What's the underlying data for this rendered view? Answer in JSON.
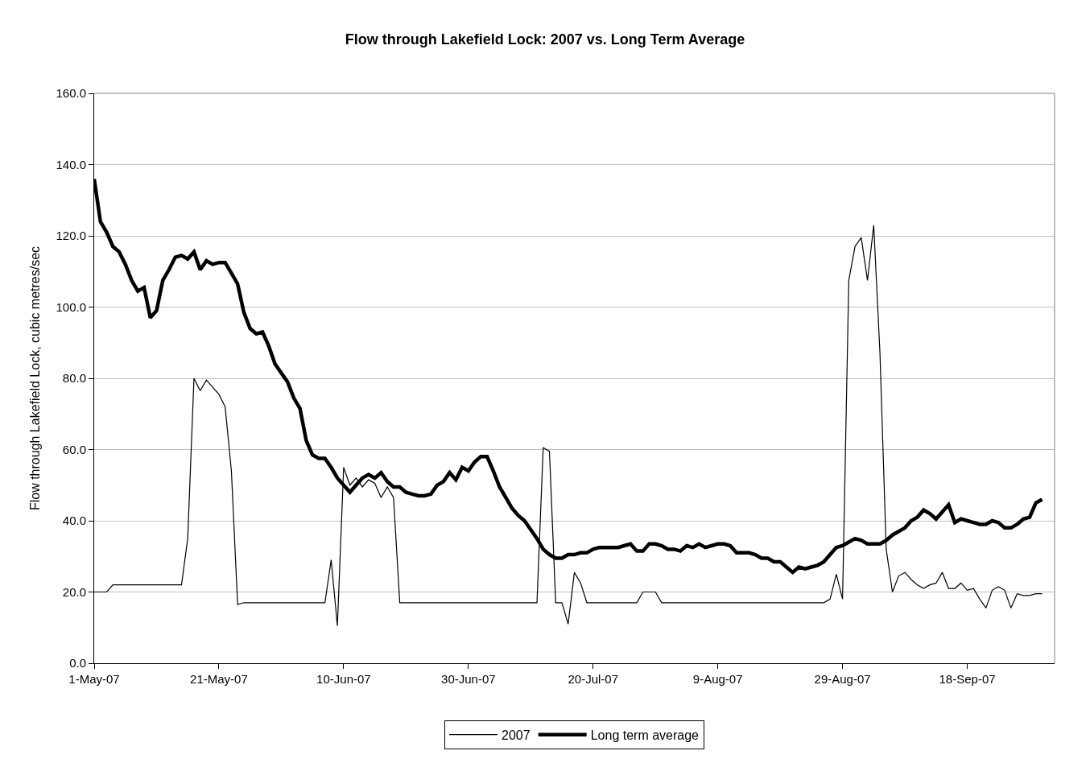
{
  "chart_data": {
    "type": "line",
    "title": "Flow through Lakefield Lock: 2007 vs. Long Term Average",
    "ylabel": "Flow through Lakefield Lock, cubic metres/sec",
    "x": [
      "2007-05-01",
      "2007-05-02",
      "2007-05-03",
      "2007-05-04",
      "2007-05-05",
      "2007-05-06",
      "2007-05-07",
      "2007-05-08",
      "2007-05-09",
      "2007-05-10",
      "2007-05-11",
      "2007-05-12",
      "2007-05-13",
      "2007-05-14",
      "2007-05-15",
      "2007-05-16",
      "2007-05-17",
      "2007-05-18",
      "2007-05-19",
      "2007-05-20",
      "2007-05-21",
      "2007-05-22",
      "2007-05-23",
      "2007-05-24",
      "2007-05-25",
      "2007-05-26",
      "2007-05-27",
      "2007-05-28",
      "2007-05-29",
      "2007-05-30",
      "2007-05-31",
      "2007-06-01",
      "2007-06-02",
      "2007-06-03",
      "2007-06-04",
      "2007-06-05",
      "2007-06-06",
      "2007-06-07",
      "2007-06-08",
      "2007-06-09",
      "2007-06-10",
      "2007-06-11",
      "2007-06-12",
      "2007-06-13",
      "2007-06-14",
      "2007-06-15",
      "2007-06-16",
      "2007-06-17",
      "2007-06-18",
      "2007-06-19",
      "2007-06-20",
      "2007-06-21",
      "2007-06-22",
      "2007-06-23",
      "2007-06-24",
      "2007-06-25",
      "2007-06-26",
      "2007-06-27",
      "2007-06-28",
      "2007-06-29",
      "2007-06-30",
      "2007-07-01",
      "2007-07-02",
      "2007-07-03",
      "2007-07-04",
      "2007-07-05",
      "2007-07-06",
      "2007-07-07",
      "2007-07-08",
      "2007-07-09",
      "2007-07-10",
      "2007-07-11",
      "2007-07-12",
      "2007-07-13",
      "2007-07-14",
      "2007-07-15",
      "2007-07-16",
      "2007-07-17",
      "2007-07-18",
      "2007-07-19",
      "2007-07-20",
      "2007-07-21",
      "2007-07-22",
      "2007-07-23",
      "2007-07-24",
      "2007-07-25",
      "2007-07-26",
      "2007-07-27",
      "2007-07-28",
      "2007-07-29",
      "2007-07-30",
      "2007-07-31",
      "2007-08-01",
      "2007-08-02",
      "2007-08-03",
      "2007-08-04",
      "2007-08-05",
      "2007-08-06",
      "2007-08-07",
      "2007-08-08",
      "2007-08-09",
      "2007-08-10",
      "2007-08-11",
      "2007-08-12",
      "2007-08-13",
      "2007-08-14",
      "2007-08-15",
      "2007-08-16",
      "2007-08-17",
      "2007-08-18",
      "2007-08-19",
      "2007-08-20",
      "2007-08-21",
      "2007-08-22",
      "2007-08-23",
      "2007-08-24",
      "2007-08-25",
      "2007-08-26",
      "2007-08-27",
      "2007-08-28",
      "2007-08-29",
      "2007-08-30",
      "2007-08-31",
      "2007-09-01",
      "2007-09-02",
      "2007-09-03",
      "2007-09-04",
      "2007-09-05",
      "2007-09-06",
      "2007-09-07",
      "2007-09-08",
      "2007-09-09",
      "2007-09-10",
      "2007-09-11",
      "2007-09-12",
      "2007-09-13",
      "2007-09-14",
      "2007-09-15",
      "2007-09-16",
      "2007-09-17",
      "2007-09-18",
      "2007-09-19",
      "2007-09-20",
      "2007-09-21",
      "2007-09-22",
      "2007-09-23",
      "2007-09-24",
      "2007-09-25",
      "2007-09-26",
      "2007-09-27",
      "2007-09-28",
      "2007-09-29",
      "2007-09-30"
    ],
    "series": [
      {
        "name": "2007",
        "color": "#000000",
        "values": [
          20,
          20,
          20,
          22,
          22,
          22,
          22,
          22,
          22,
          22,
          22,
          22,
          22,
          22,
          22,
          35,
          80,
          76.5,
          79.5,
          77.5,
          75.5,
          72,
          54,
          16.5,
          17,
          17,
          17,
          17,
          17,
          17,
          17,
          17,
          17,
          17,
          17,
          17,
          17,
          17,
          29,
          10.5,
          55,
          50,
          52,
          49.5,
          51.5,
          50.5,
          46.5,
          49.5,
          46.5,
          17,
          17,
          17,
          17,
          17,
          17,
          17,
          17,
          17,
          17,
          17,
          17,
          17,
          17,
          17,
          17,
          17,
          17,
          17,
          17,
          17,
          17,
          17,
          60.5,
          59.5,
          17,
          17,
          11,
          25.5,
          22.5,
          17,
          17,
          17,
          17,
          17,
          17,
          17,
          17,
          17,
          20,
          20,
          20,
          17,
          17,
          17,
          17,
          17,
          17,
          17,
          17,
          17,
          17,
          17,
          17,
          17,
          17,
          17,
          17,
          17,
          17,
          17,
          17,
          17,
          17,
          17,
          17,
          17,
          17,
          17,
          18,
          25,
          18,
          107.5,
          117,
          119.5,
          107.5,
          123,
          87,
          32,
          20,
          24.5,
          25.5,
          23.5,
          22,
          21,
          22,
          22.5,
          25.5,
          21,
          21,
          22.5,
          20.5,
          21,
          18,
          15.5,
          20.5,
          21.5,
          20.5,
          15.5,
          19.5,
          19,
          19,
          19.5,
          19.5
        ]
      },
      {
        "name": "Long term average",
        "color": "#000000",
        "values": [
          136,
          124,
          121,
          117,
          115.5,
          112,
          107.5,
          104.5,
          105.5,
          97,
          99,
          107.5,
          110.5,
          114,
          114.5,
          113.5,
          115.5,
          110.5,
          113,
          112,
          112.5,
          112.5,
          109.5,
          106.5,
          98.5,
          94,
          92.5,
          93,
          89,
          84,
          81.5,
          79,
          74.5,
          71.5,
          62.5,
          58.5,
          57.5,
          57.5,
          55,
          52,
          50,
          48,
          50,
          52,
          53,
          52,
          53.5,
          51,
          49.5,
          49.5,
          48,
          47.5,
          47,
          47,
          47.5,
          50,
          51,
          53.5,
          51.5,
          55,
          54,
          56.5,
          58,
          58,
          54,
          49.5,
          46.5,
          43.5,
          41.5,
          40,
          37.5,
          35,
          32,
          30.5,
          29.5,
          29.5,
          30.5,
          30.5,
          31,
          31,
          32,
          32.5,
          32.5,
          32.5,
          32.5,
          33,
          33.5,
          31.5,
          31.5,
          33.5,
          33.5,
          33,
          32,
          32,
          31.5,
          33,
          32.5,
          33.5,
          32.5,
          33,
          33.5,
          33.5,
          33,
          31,
          31,
          31,
          30.5,
          29.5,
          29.5,
          28.5,
          28.5,
          27,
          25.5,
          27,
          26.5,
          27,
          27.5,
          28.5,
          30.5,
          32.5,
          33,
          34,
          35,
          34.5,
          33.5,
          33.5,
          33.5,
          34.5,
          36,
          37,
          38,
          40,
          41,
          43,
          42,
          40.5,
          42.5,
          44.5,
          39.5,
          40.5,
          40,
          39.5,
          39,
          39,
          40,
          39.5,
          38,
          38,
          39,
          40.5,
          41,
          45,
          46
        ]
      }
    ],
    "xlim": [
      "2007-05-01",
      "2007-10-02"
    ],
    "xticks": [
      {
        "value": "2007-05-01",
        "label": "1-May-07"
      },
      {
        "value": "2007-05-21",
        "label": "21-May-07"
      },
      {
        "value": "2007-06-10",
        "label": "10-Jun-07"
      },
      {
        "value": "2007-06-30",
        "label": "30-Jun-07"
      },
      {
        "value": "2007-07-20",
        "label": "20-Jul-07"
      },
      {
        "value": "2007-08-09",
        "label": "9-Aug-07"
      },
      {
        "value": "2007-08-29",
        "label": "29-Aug-07"
      },
      {
        "value": "2007-09-18",
        "label": "18-Sep-07"
      }
    ],
    "ylim": [
      0,
      160
    ],
    "yticks": [
      {
        "value": 0,
        "label": "0.0"
      },
      {
        "value": 20,
        "label": "20.0"
      },
      {
        "value": 40,
        "label": "40.0"
      },
      {
        "value": 60,
        "label": "60.0"
      },
      {
        "value": 80,
        "label": "80.0"
      },
      {
        "value": 100,
        "label": "100.0"
      },
      {
        "value": 120,
        "label": "120.0"
      },
      {
        "value": 140,
        "label": "140.0"
      },
      {
        "value": 160,
        "label": "160.0"
      }
    ],
    "grid": "y",
    "legend": "bottom",
    "marker": "none",
    "line_style": "solid"
  }
}
